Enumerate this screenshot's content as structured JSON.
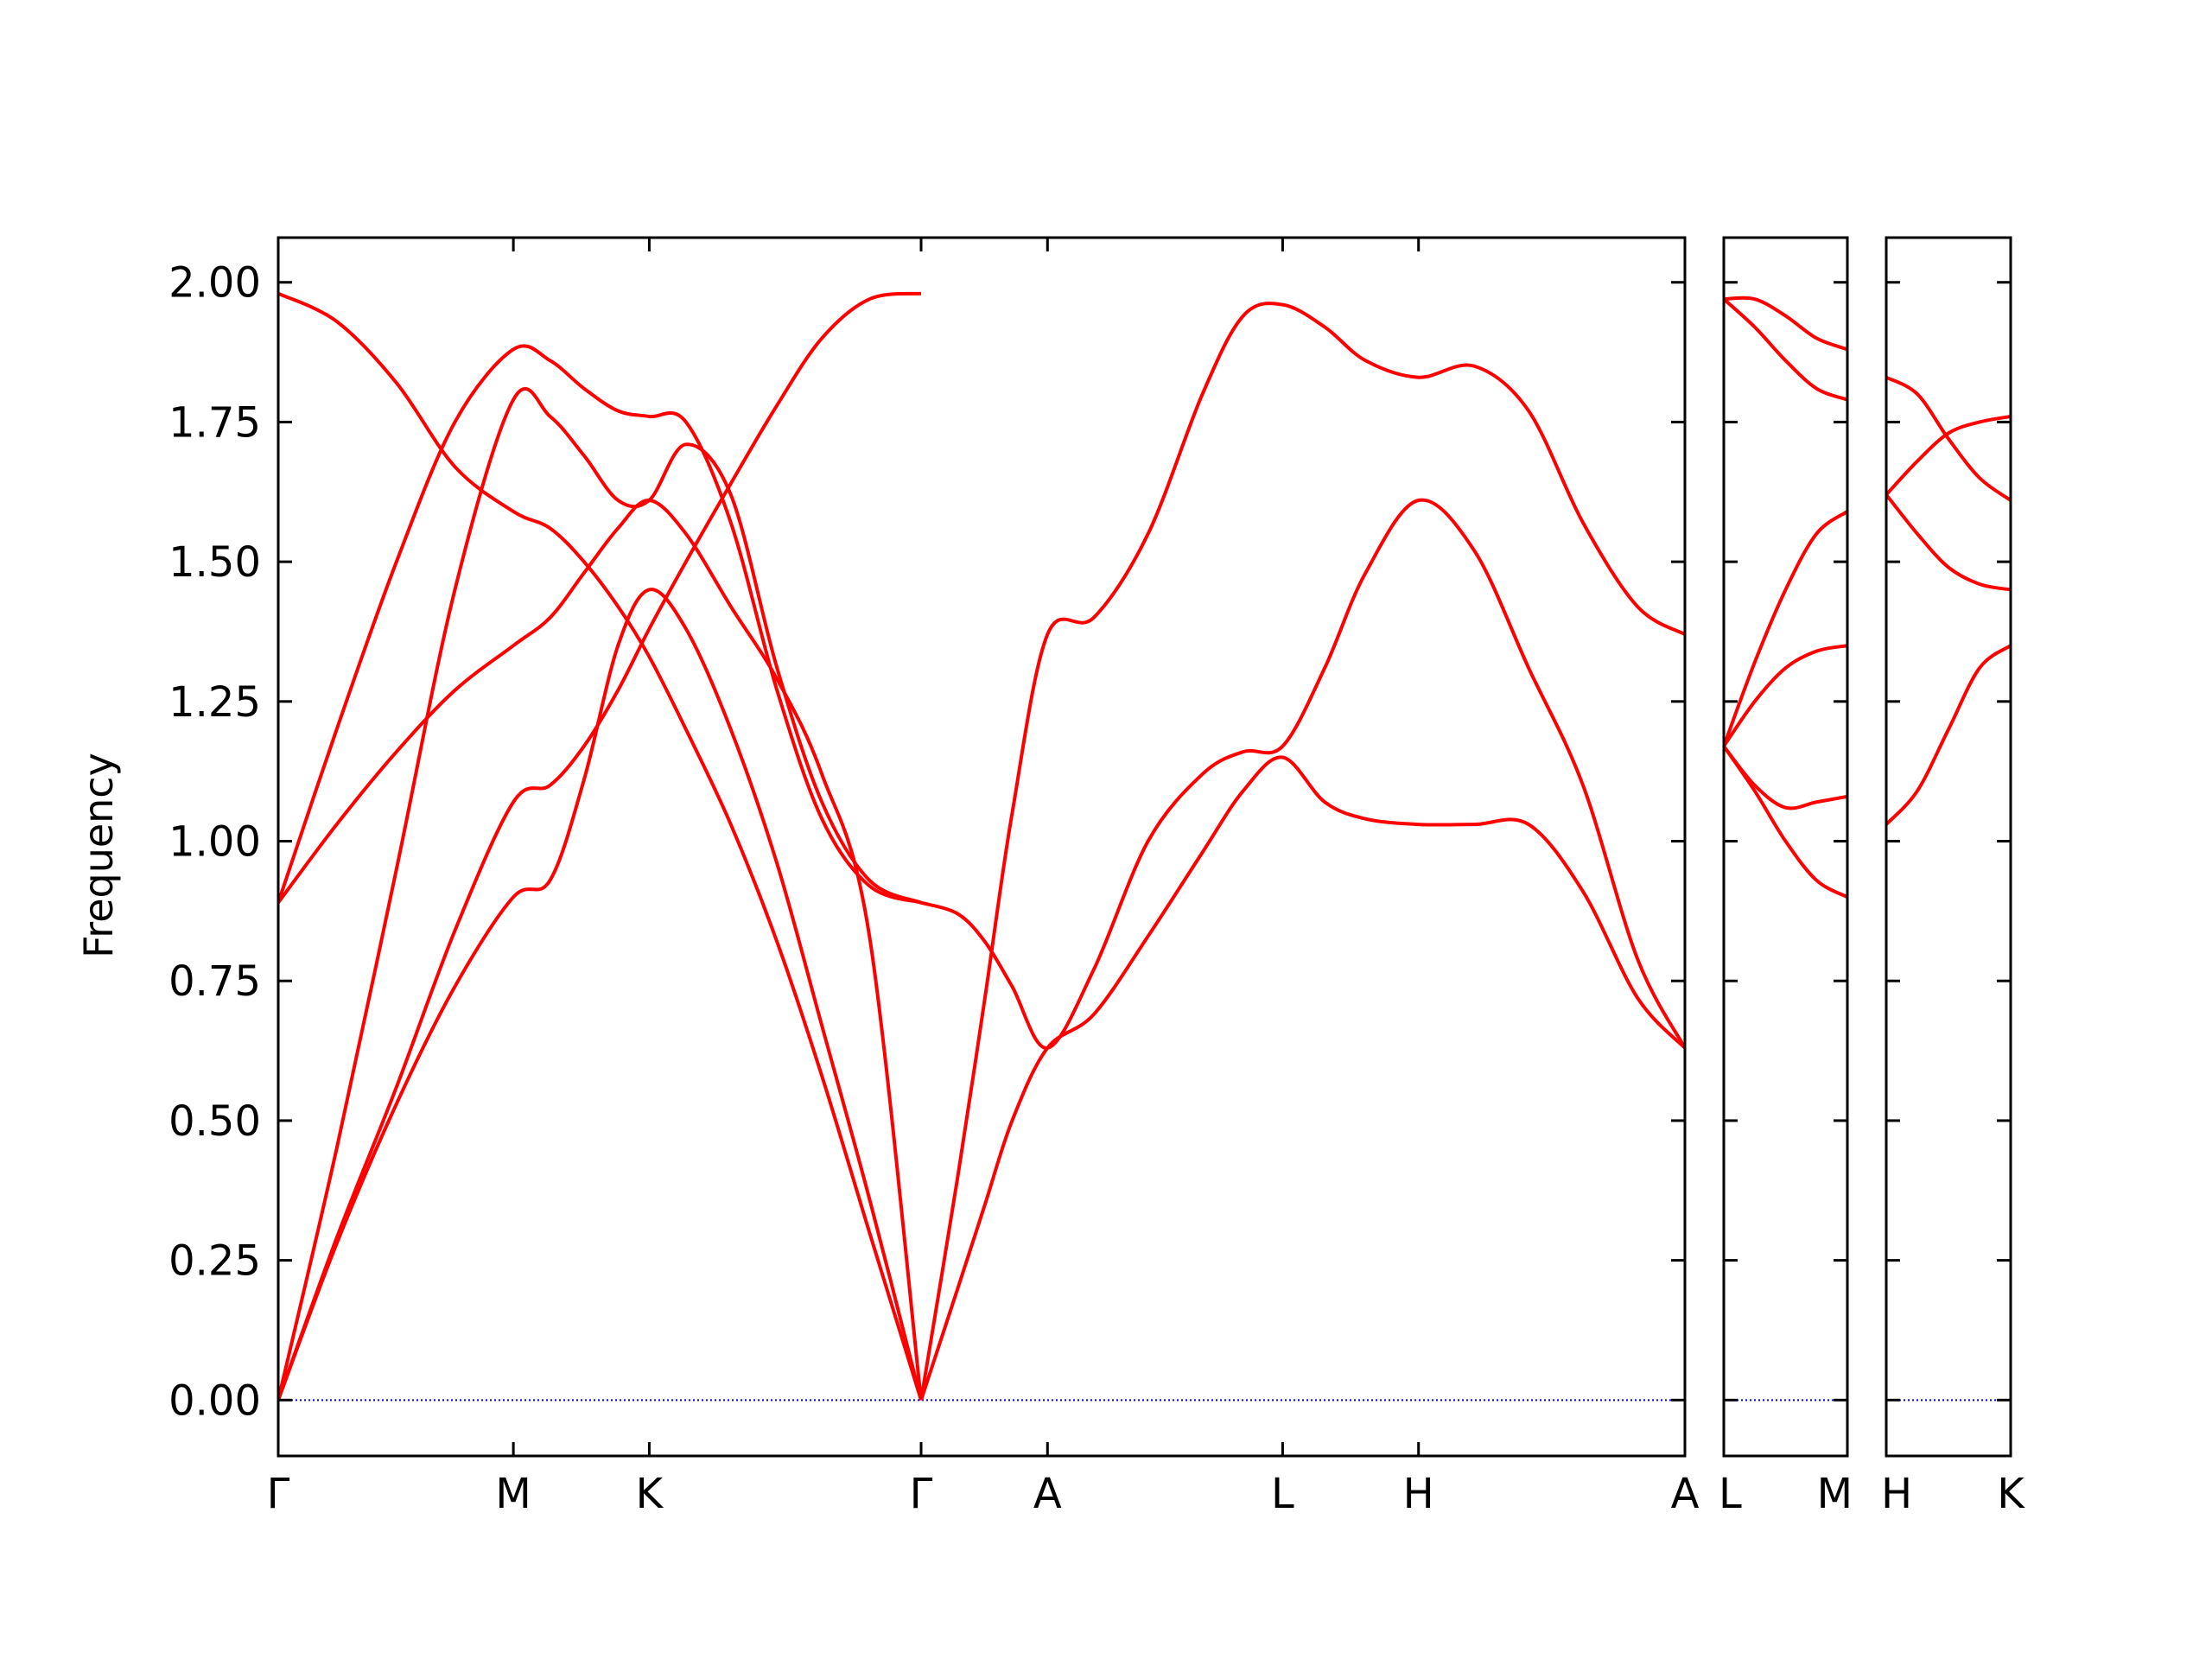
{
  "chart_data": {
    "type": "line",
    "title": "",
    "ylabel": "Frequency",
    "ylim": [
      -0.1,
      2.08
    ],
    "yticks": [
      "0.00",
      "0.25",
      "0.50",
      "0.75",
      "1.00",
      "1.25",
      "1.50",
      "1.75",
      "2.00"
    ],
    "grid": false,
    "legend": "none",
    "colors": {
      "bands": "#ff0000",
      "zero_line": "#0000ff",
      "frame": "#000000"
    },
    "panels": [
      {
        "name": "main",
        "x_range": [
          0,
          10.35
        ],
        "high_symmetry_points": [
          {
            "label": "Γ",
            "x": 0
          },
          {
            "label": "M",
            "x": 1.73
          },
          {
            "label": "K",
            "x": 2.73
          },
          {
            "label": "Γ",
            "x": 4.73
          },
          {
            "label": "A",
            "x": 5.66
          },
          {
            "label": "L",
            "x": 7.39
          },
          {
            "label": "H",
            "x": 8.39
          },
          {
            "label": "A",
            "x": 10.35
          }
        ],
        "bands": [
          {
            "x": [
              0,
              0.43,
              0.87,
              1.3,
              1.73,
              2.0,
              2.25,
              2.5,
              2.73,
              3.0,
              3.33,
              3.67,
              4.0,
              4.35,
              4.73
            ],
            "y": [
              0,
              0.28,
              0.53,
              0.74,
              0.9,
              0.93,
              1.11,
              1.35,
              1.45,
              1.38,
              1.2,
              0.96,
              0.67,
              0.36,
              0
            ]
          },
          {
            "x": [
              0,
              0.43,
              0.87,
              1.3,
              1.73,
              2.0,
              2.25,
              2.5,
              2.73,
              3.0,
              3.33,
              3.67,
              4.0,
              4.35,
              4.73
            ],
            "y": [
              0,
              0.29,
              0.56,
              0.84,
              1.07,
              1.1,
              1.17,
              1.27,
              1.38,
              1.5,
              1.64,
              1.78,
              1.9,
              1.97,
              1.98
            ]
          },
          {
            "x": [
              0,
              0.43,
              0.87,
              1.3,
              1.73,
              2.0,
              2.25,
              2.5,
              2.73,
              3.0,
              3.33,
              3.67,
              4.0,
              4.35,
              4.73
            ],
            "y": [
              0.89,
              1.03,
              1.16,
              1.27,
              1.35,
              1.4,
              1.48,
              1.56,
              1.61,
              1.55,
              1.42,
              1.29,
              1.12,
              0.83,
              0
            ]
          },
          {
            "x": [
              0,
              0.43,
              0.87,
              1.3,
              1.73,
              2.0,
              2.25,
              2.5,
              2.73,
              3.0,
              3.33,
              3.67,
              4.0,
              4.35,
              4.73
            ],
            "y": [
              1.98,
              1.93,
              1.82,
              1.67,
              1.59,
              1.56,
              1.5,
              1.42,
              1.33,
              1.2,
              1.03,
              0.82,
              0.58,
              0.3,
              0
            ]
          },
          {
            "x": [
              0,
              0.43,
              0.87,
              1.3,
              1.73,
              2.0,
              2.25,
              2.5,
              2.73,
              3.0,
              3.33,
              3.67,
              4.0,
              4.35,
              4.73
            ],
            "y": [
              0,
              0.45,
              0.95,
              1.45,
              1.79,
              1.76,
              1.69,
              1.61,
              1.61,
              1.71,
              1.62,
              1.31,
              1.07,
              0.93,
              0.89
            ]
          },
          {
            "x": [
              0,
              0.43,
              0.87,
              1.3,
              1.73,
              2.0,
              2.25,
              2.5,
              2.73,
              3.0,
              3.33,
              3.67,
              4.0,
              4.35,
              4.73
            ],
            "y": [
              0.89,
              1.2,
              1.5,
              1.75,
              1.88,
              1.86,
              1.81,
              1.77,
              1.76,
              1.75,
              1.57,
              1.27,
              1.04,
              0.92,
              0.89
            ]
          },
          {
            "x": [
              4.73,
              5.0,
              5.2,
              5.4,
              5.66,
              6.0,
              6.4,
              6.8,
              7.1,
              7.39,
              7.7,
              8.0,
              8.39,
              8.8,
              9.2,
              9.6,
              10.0,
              10.35
            ],
            "y": [
              0,
              0.2,
              0.35,
              0.5,
              0.63,
              0.69,
              0.83,
              0.98,
              1.09,
              1.15,
              1.07,
              1.04,
              1.03,
              1.03,
              1.03,
              0.91,
              0.72,
              0.63
            ]
          },
          {
            "x": [
              4.73,
              5.0,
              5.2,
              5.4,
              5.66,
              6.0,
              6.4,
              6.8,
              7.1,
              7.39,
              7.7,
              8.0,
              8.39,
              8.8,
              9.2,
              9.6,
              10.0,
              10.35
            ],
            "y": [
              0,
              0.4,
              0.72,
              1.05,
              1.37,
              1.4,
              1.55,
              1.8,
              1.94,
              1.96,
              1.92,
              1.86,
              1.83,
              1.85,
              1.77,
              1.57,
              1.42,
              1.37
            ]
          },
          {
            "x": [
              4.73,
              5.0,
              5.2,
              5.4,
              5.66,
              6.0,
              6.4,
              6.8,
              7.1,
              7.39,
              7.7,
              8.0,
              8.39,
              8.8,
              9.2,
              9.6,
              10.0,
              10.35
            ],
            "y": [
              0.89,
              0.87,
              0.82,
              0.74,
              0.63,
              0.77,
              1.0,
              1.12,
              1.16,
              1.17,
              1.31,
              1.48,
              1.61,
              1.52,
              1.31,
              1.1,
              0.79,
              0.63
            ]
          }
        ]
      },
      {
        "name": "L-M",
        "x_range": [
          0,
          1.0
        ],
        "high_symmetry_points": [
          {
            "label": "L",
            "x": 0
          },
          {
            "label": "M",
            "x": 1.0
          }
        ],
        "bands": [
          {
            "x": [
              0,
              0.25,
              0.5,
              0.75,
              1.0
            ],
            "y": [
              1.17,
              1.09,
              1.0,
              0.93,
              0.9
            ]
          },
          {
            "x": [
              0,
              0.25,
              0.5,
              0.75,
              1.0
            ],
            "y": [
              1.17,
              1.1,
              1.06,
              1.07,
              1.08
            ]
          },
          {
            "x": [
              0,
              0.25,
              0.5,
              0.75,
              1.0
            ],
            "y": [
              1.17,
              1.25,
              1.31,
              1.34,
              1.35
            ]
          },
          {
            "x": [
              0,
              0.25,
              0.5,
              0.75,
              1.0
            ],
            "y": [
              1.17,
              1.32,
              1.45,
              1.55,
              1.59
            ]
          },
          {
            "x": [
              0,
              0.25,
              0.5,
              0.75,
              1.0
            ],
            "y": [
              1.97,
              1.92,
              1.86,
              1.81,
              1.79
            ]
          },
          {
            "x": [
              0,
              0.25,
              0.5,
              0.75,
              1.0
            ],
            "y": [
              1.97,
              1.97,
              1.94,
              1.9,
              1.88
            ]
          }
        ]
      },
      {
        "name": "H-K",
        "x_range": [
          0,
          1.0
        ],
        "high_symmetry_points": [
          {
            "label": "H",
            "x": 0
          },
          {
            "label": "K",
            "x": 1.0
          }
        ],
        "bands": [
          {
            "x": [
              0,
              0.25,
              0.5,
              0.75,
              1.0
            ],
            "y": [
              1.03,
              1.09,
              1.2,
              1.31,
              1.35
            ]
          },
          {
            "x": [
              0,
              0.25,
              0.5,
              0.75,
              1.0
            ],
            "y": [
              1.62,
              1.55,
              1.49,
              1.46,
              1.45
            ]
          },
          {
            "x": [
              0,
              0.25,
              0.5,
              0.75,
              1.0
            ],
            "y": [
              1.62,
              1.68,
              1.73,
              1.75,
              1.76
            ]
          },
          {
            "x": [
              0,
              0.25,
              0.5,
              0.75,
              1.0
            ],
            "y": [
              1.83,
              1.8,
              1.72,
              1.65,
              1.61
            ]
          }
        ]
      }
    ]
  }
}
